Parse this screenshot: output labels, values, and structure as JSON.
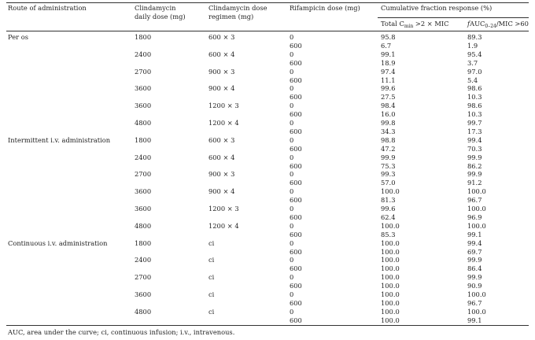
{
  "table": {
    "headers": [
      [
        "Route of administration"
      ],
      [
        "Clindamycin",
        "daily dose (mg)"
      ],
      [
        "Clindamycin dose",
        "regimen (mg)"
      ],
      [
        "Rifampicin dose (mg)"
      ]
    ],
    "group_header": "Cumulative fraction response (%)",
    "subheaders": [
      {
        "pre": "Total C",
        "sub": "min",
        "post": " >2 × MIC"
      },
      {
        "italic": "f",
        "pre": "AUC",
        "sub": "0–24",
        "post": "/MIC >60"
      }
    ],
    "sections": [
      {
        "route": "Per os",
        "groups": [
          {
            "daily_dose": "1800",
            "regimen": "600 × 3",
            "rows": [
              [
                "0",
                "95.8",
                "89.3"
              ],
              [
                "600",
                "6.7",
                "1.9"
              ]
            ]
          },
          {
            "daily_dose": "2400",
            "regimen": "600 × 4",
            "rows": [
              [
                "0",
                "99.1",
                "95.4"
              ],
              [
                "600",
                "18.9",
                "3.7"
              ]
            ]
          },
          {
            "daily_dose": "2700",
            "regimen": "900 × 3",
            "rows": [
              [
                "0",
                "97.4",
                "97.0"
              ],
              [
                "600",
                "11.1",
                "5.4"
              ]
            ]
          },
          {
            "daily_dose": "3600",
            "regimen": "900 × 4",
            "rows": [
              [
                "0",
                "99.6",
                "98.6"
              ],
              [
                "600",
                "27.5",
                "10.3"
              ]
            ]
          },
          {
            "daily_dose": "3600",
            "regimen": "1200 × 3",
            "rows": [
              [
                "0",
                "98.4",
                "98.6"
              ],
              [
                "600",
                "16.0",
                "10.3"
              ]
            ]
          },
          {
            "daily_dose": "4800",
            "regimen": "1200 × 4",
            "rows": [
              [
                "0",
                "99.8",
                "99.7"
              ],
              [
                "600",
                "34.3",
                "17.3"
              ]
            ]
          }
        ]
      },
      {
        "route": "Intermittent i.v. administration",
        "groups": [
          {
            "daily_dose": "1800",
            "regimen": "600 × 3",
            "rows": [
              [
                "0",
                "98.8",
                "99.4"
              ],
              [
                "600",
                "47.2",
                "70.3"
              ]
            ]
          },
          {
            "daily_dose": "2400",
            "regimen": "600 × 4",
            "rows": [
              [
                "0",
                "99.9",
                "99.9"
              ],
              [
                "600",
                "75.3",
                "86.2"
              ]
            ]
          },
          {
            "daily_dose": "2700",
            "regimen": "900 × 3",
            "rows": [
              [
                "0",
                "99.3",
                "99.9"
              ],
              [
                "600",
                "57.0",
                "91.2"
              ]
            ]
          },
          {
            "daily_dose": "3600",
            "regimen": "900 × 4",
            "rows": [
              [
                "0",
                "100.0",
                "100.0"
              ],
              [
                "600",
                "81.3",
                "96.7"
              ]
            ]
          },
          {
            "daily_dose": "3600",
            "regimen": "1200 × 3",
            "rows": [
              [
                "0",
                "99.6",
                "100.0"
              ],
              [
                "600",
                "62.4",
                "96.9"
              ]
            ]
          },
          {
            "daily_dose": "4800",
            "regimen": "1200 × 4",
            "rows": [
              [
                "0",
                "100.0",
                "100.0"
              ],
              [
                "600",
                "85.3",
                "99.1"
              ]
            ]
          }
        ]
      },
      {
        "route": "Continuous i.v. administration",
        "groups": [
          {
            "daily_dose": "1800",
            "regimen": "ci",
            "rows": [
              [
                "0",
                "100.0",
                "99.4"
              ],
              [
                "600",
                "100.0",
                "69.7"
              ]
            ]
          },
          {
            "daily_dose": "2400",
            "regimen": "ci",
            "rows": [
              [
                "0",
                "100.0",
                "99.9"
              ],
              [
                "600",
                "100.0",
                "86.4"
              ]
            ]
          },
          {
            "daily_dose": "2700",
            "regimen": "ci",
            "rows": [
              [
                "0",
                "100.0",
                "99.9"
              ],
              [
                "600",
                "100.0",
                "90.9"
              ]
            ]
          },
          {
            "daily_dose": "3600",
            "regimen": "ci",
            "rows": [
              [
                "0",
                "100.0",
                "100.0"
              ],
              [
                "600",
                "100.0",
                "96.7"
              ]
            ]
          },
          {
            "daily_dose": "4800",
            "regimen": "ci",
            "rows": [
              [
                "0",
                "100.0",
                "100.0"
              ],
              [
                "600",
                "100.0",
                "99.1"
              ]
            ]
          }
        ]
      }
    ]
  },
  "footnote": "AUC, area under the curve; ci, continuous infusion; i.v., intravenous."
}
